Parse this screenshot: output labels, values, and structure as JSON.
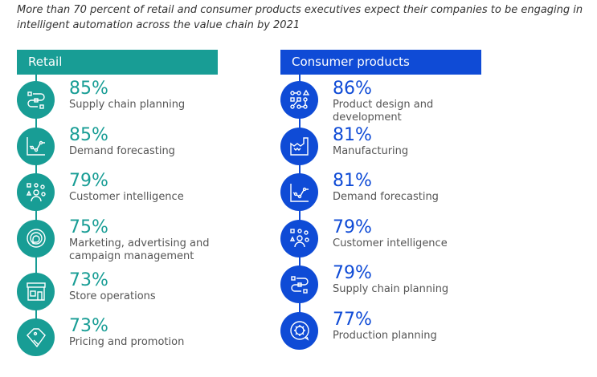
{
  "intro": "More than 70 percent of retail and consumer products executives expect their companies to be engaging in intelligent automation across the value chain by 2021",
  "colors": {
    "retail": "#189d95",
    "consumer": "#0f4bd6"
  },
  "retail": {
    "title": "Retail",
    "items": [
      {
        "pct": "85%",
        "label": "Supply chain planning",
        "icon": "supply-chain-icon"
      },
      {
        "pct": "85%",
        "label": "Demand forecasting",
        "icon": "chart-icon"
      },
      {
        "pct": "79%",
        "label": "Customer intelligence",
        "icon": "people-icon"
      },
      {
        "pct": "75%",
        "label": "Marketing, advertising and campaign management",
        "icon": "speech-icon"
      },
      {
        "pct": "73%",
        "label": "Store operations",
        "icon": "store-icon"
      },
      {
        "pct": "73%",
        "label": "Pricing and promotion",
        "icon": "tag-icon"
      }
    ]
  },
  "consumer": {
    "title": "Consumer products",
    "items": [
      {
        "pct": "86%",
        "label": "Product design and development",
        "icon": "design-network-icon"
      },
      {
        "pct": "81%",
        "label": "Manufacturing",
        "icon": "factory-icon"
      },
      {
        "pct": "81%",
        "label": "Demand forecasting",
        "icon": "chart-icon"
      },
      {
        "pct": "79%",
        "label": "Customer intelligence",
        "icon": "people-icon"
      },
      {
        "pct": "79%",
        "label": "Supply chain planning",
        "icon": "supply-chain-icon"
      },
      {
        "pct": "77%",
        "label": "Production planning",
        "icon": "gear-cycle-icon"
      }
    ]
  }
}
